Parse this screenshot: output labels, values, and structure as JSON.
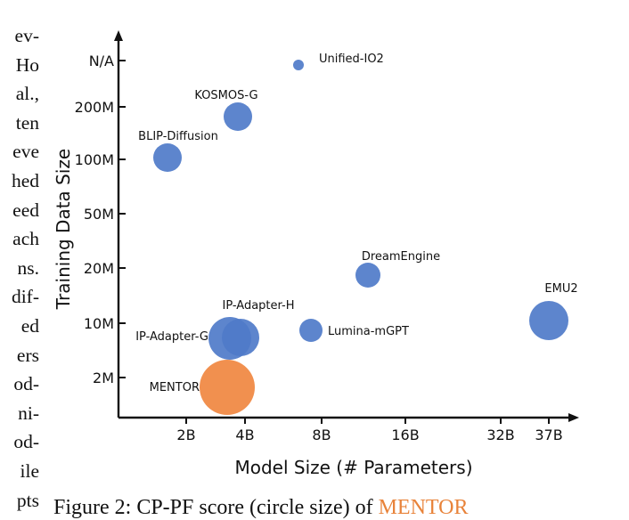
{
  "side_text": [
    "ev-",
    "Ho",
    "al.,",
    "ten",
    "eve",
    "hed",
    "eed",
    "ach",
    "ns.",
    "dif-",
    "ed",
    "ers",
    "od-",
    "ni-",
    "od-",
    "ile",
    "pts"
  ],
  "caption": {
    "prefix": "Figure 2: CP-PF score (circle size) of ",
    "accent": "MENTOR"
  },
  "chart_data": {
    "type": "scatter",
    "title": "",
    "xlabel": "Model Size (# Parameters)",
    "ylabel": "Training Data Size",
    "x_ticks": [
      "2B",
      "4B",
      "8B",
      "16B",
      "32B",
      "37B"
    ],
    "y_ticks": [
      "2M",
      "10M",
      "20M",
      "50M",
      "100M",
      "200M",
      "N/A"
    ],
    "grid": false,
    "points": [
      {
        "label": "Unified-IO2",
        "x": "6.8B",
        "y": "N/A",
        "color": "#4f7bc9"
      },
      {
        "label": "KOSMOS-G",
        "x": "3.9B",
        "y": "200M",
        "color": "#4f7bc9"
      },
      {
        "label": "BLIP-Diffusion",
        "x": "1.6B",
        "y": "100M",
        "color": "#4f7bc9"
      },
      {
        "label": "DreamEngine",
        "x": "12B",
        "y": "20M",
        "color": "#4f7bc9"
      },
      {
        "label": "EMU2",
        "x": "37B",
        "y": "10M",
        "color": "#4f7bc9"
      },
      {
        "label": "Lumina-mGPT",
        "x": "7B",
        "y": "10M",
        "color": "#4f7bc9"
      },
      {
        "label": "IP-Adapter-H",
        "x": "4B",
        "y": "10M",
        "color": "#4f7bc9"
      },
      {
        "label": "IP-Adapter-G",
        "x": "3.5B",
        "y": "10M",
        "color": "#4f7bc9"
      },
      {
        "label": "MENTOR",
        "x": "3B",
        "y": "2M",
        "color": "#f08a46"
      }
    ]
  }
}
